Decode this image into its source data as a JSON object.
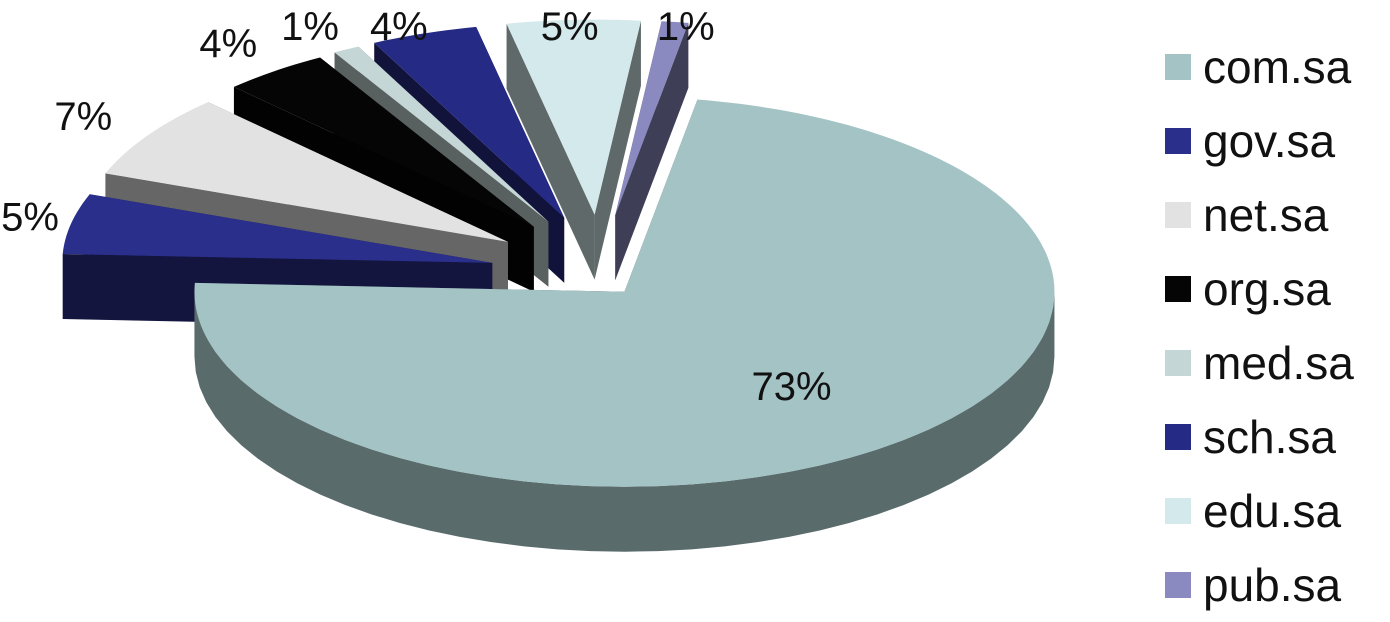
{
  "chart_data": {
    "type": "pie",
    "style": "3d-exploded",
    "legend_position": "right",
    "slices": [
      {
        "label": "com.sa",
        "value": 73,
        "value_label": "73%",
        "color": "#A3C3C5"
      },
      {
        "label": "gov.sa",
        "value": 5,
        "value_label": "5%",
        "color": "#2B2F8C"
      },
      {
        "label": "net.sa",
        "value": 7,
        "value_label": "7%",
        "color": "#E2E2E2"
      },
      {
        "label": "org.sa",
        "value": 4,
        "value_label": "4%",
        "color": "#050505"
      },
      {
        "label": "med.sa",
        "value": 1,
        "value_label": "1%",
        "color": "#C5D6D6"
      },
      {
        "label": "sch.sa",
        "value": 4,
        "value_label": "4%",
        "color": "#252A84"
      },
      {
        "label": "edu.sa",
        "value": 5,
        "value_label": "5%",
        "color": "#D3E9EC"
      },
      {
        "label": "pub.sa",
        "value": 1,
        "value_label": "1%",
        "color": "#8A8AC0"
      }
    ]
  }
}
